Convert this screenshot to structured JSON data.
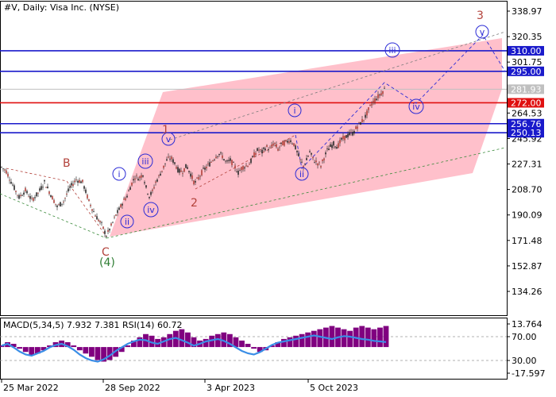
{
  "header": {
    "title": "#V, Daily:  Visa Inc. (NYSE)"
  },
  "colors": {
    "channel_fill": "#ffc0cb",
    "level_blue": "#1a1acb",
    "level_red": "#e01010",
    "current_price": "#c0c0c0",
    "macd_hist": "#800080",
    "rsi_line": "#3a8ee6",
    "wave_red": "#b2413a",
    "wave_green": "#2e7d32",
    "wave_blue": "#2b2bd6"
  },
  "chart_data": {
    "type": "candlestick",
    "symbol": "#V",
    "timeframe": "Daily",
    "instrument": "Visa Inc. (NYSE)",
    "ylim": [
      122,
      345
    ],
    "price_ticks": [
      "338.97",
      "320.35",
      "301.75",
      "264.53",
      "245.92",
      "227.31",
      "208.70",
      "190.09",
      "171.48",
      "152.87",
      "134.26"
    ],
    "time_ticks": [
      "25 Mar 2022",
      "28 Sep 2022",
      "3 Apr 2023",
      "5 Oct 2023"
    ],
    "levels": [
      {
        "value": 310.0,
        "label": "310.00",
        "kind": "resistance"
      },
      {
        "value": 295.0,
        "label": "295.00",
        "kind": "resistance"
      },
      {
        "value": 281.93,
        "label": "281.93",
        "kind": "current"
      },
      {
        "value": 272.0,
        "label": "272.00",
        "kind": "pivot"
      },
      {
        "value": 256.76,
        "label": "256.76",
        "kind": "support"
      },
      {
        "value": 250.13,
        "label": "250.13",
        "kind": "support"
      }
    ],
    "price_series": [
      [
        0,
        226
      ],
      [
        8,
        222
      ],
      [
        16,
        212
      ],
      [
        24,
        203
      ],
      [
        32,
        208
      ],
      [
        40,
        201
      ],
      [
        48,
        206
      ],
      [
        56,
        214
      ],
      [
        64,
        205
      ],
      [
        72,
        196
      ],
      [
        80,
        200
      ],
      [
        88,
        210
      ],
      [
        96,
        216
      ],
      [
        104,
        214
      ],
      [
        112,
        200
      ],
      [
        120,
        190
      ],
      [
        128,
        183
      ],
      [
        134,
        175
      ],
      [
        140,
        182
      ],
      [
        146,
        190
      ],
      [
        150,
        194
      ],
      [
        155,
        200
      ],
      [
        160,
        204
      ],
      [
        165,
        212
      ],
      [
        170,
        218
      ],
      [
        175,
        217
      ],
      [
        180,
        220
      ],
      [
        184,
        210
      ],
      [
        188,
        204
      ],
      [
        192,
        207
      ],
      [
        196,
        214
      ],
      [
        200,
        218
      ],
      [
        205,
        224
      ],
      [
        210,
        230
      ],
      [
        215,
        232
      ],
      [
        220,
        228
      ],
      [
        225,
        222
      ],
      [
        230,
        222
      ],
      [
        235,
        226
      ],
      [
        240,
        220
      ],
      [
        245,
        213
      ],
      [
        250,
        217
      ],
      [
        255,
        222
      ],
      [
        260,
        225
      ],
      [
        265,
        228
      ],
      [
        270,
        232
      ],
      [
        275,
        235
      ],
      [
        280,
        233
      ],
      [
        285,
        228
      ],
      [
        290,
        230
      ],
      [
        295,
        226
      ],
      [
        300,
        221
      ],
      [
        305,
        225
      ],
      [
        310,
        226
      ],
      [
        315,
        228
      ],
      [
        320,
        234
      ],
      [
        325,
        238
      ],
      [
        330,
        236
      ],
      [
        335,
        240
      ],
      [
        340,
        238
      ],
      [
        345,
        243
      ],
      [
        350,
        238
      ],
      [
        355,
        242
      ],
      [
        360,
        243
      ],
      [
        365,
        245
      ],
      [
        370,
        242
      ],
      [
        374,
        236
      ],
      [
        378,
        230
      ],
      [
        382,
        226
      ],
      [
        386,
        230
      ],
      [
        390,
        236
      ],
      [
        395,
        230
      ],
      [
        400,
        228
      ],
      [
        404,
        226
      ],
      [
        408,
        232
      ],
      [
        412,
        237
      ],
      [
        416,
        240
      ],
      [
        420,
        242
      ],
      [
        425,
        240
      ],
      [
        430,
        245
      ],
      [
        435,
        247
      ],
      [
        440,
        249
      ],
      [
        445,
        250
      ],
      [
        450,
        255
      ],
      [
        455,
        258
      ],
      [
        460,
        262
      ],
      [
        465,
        268
      ],
      [
        470,
        273
      ],
      [
        475,
        276
      ],
      [
        480,
        279
      ],
      [
        484,
        282
      ]
    ],
    "indicator": {
      "label": "MACD(5,34,5) 7.932 7.381 RSI(14) 60.72",
      "macd_ticks": [
        "13.764",
        "-17.597"
      ],
      "rsi_ticks": [
        "70.00",
        "30.00"
      ],
      "macd": [
        1,
        3,
        2,
        -1,
        -3,
        -5,
        -4,
        -2,
        1,
        3,
        4,
        3,
        1,
        -2,
        -4,
        -6,
        -8,
        -9,
        -8,
        -6,
        -3,
        1,
        4,
        6,
        8,
        7,
        5,
        6,
        8,
        10,
        11,
        9,
        6,
        4,
        5,
        7,
        8,
        9,
        8,
        6,
        4,
        2,
        -1,
        -3,
        -2,
        1,
        3,
        5,
        6,
        7,
        8,
        9,
        10,
        11,
        12,
        13,
        12,
        11,
        10,
        12,
        13,
        12,
        11,
        12,
        13
      ],
      "rsi": [
        55,
        58,
        52,
        45,
        40,
        38,
        42,
        46,
        52,
        56,
        58,
        54,
        48,
        40,
        34,
        30,
        28,
        32,
        38,
        46,
        52,
        58,
        62,
        65,
        64,
        60,
        58,
        62,
        66,
        68,
        64,
        60,
        55,
        58,
        62,
        64,
        66,
        63,
        58,
        52,
        46,
        42,
        40,
        44,
        50,
        56,
        60,
        62,
        64,
        66,
        68,
        70,
        72,
        70,
        68,
        66,
        69,
        71,
        70,
        68,
        66,
        65,
        63,
        62,
        61
      ]
    },
    "wave_labels": [
      {
        "text": "B",
        "color": "red",
        "style": "plain"
      },
      {
        "text": "C",
        "color": "red",
        "style": "plain"
      },
      {
        "text": "(4)",
        "color": "green",
        "style": "plain"
      },
      {
        "text": "1",
        "color": "red",
        "style": "plain"
      },
      {
        "text": "2",
        "color": "red",
        "style": "plain"
      },
      {
        "text": "3",
        "color": "red",
        "style": "plain"
      },
      {
        "text": "i",
        "color": "blue",
        "style": "circle"
      },
      {
        "text": "ii",
        "color": "blue",
        "style": "circle"
      },
      {
        "text": "iii",
        "color": "blue",
        "style": "circle"
      },
      {
        "text": "iv",
        "color": "blue",
        "style": "circle"
      },
      {
        "text": "v",
        "color": "blue",
        "style": "circle"
      },
      {
        "text": "i",
        "color": "blue",
        "style": "circle"
      },
      {
        "text": "ii",
        "color": "blue",
        "style": "circle"
      },
      {
        "text": "iii",
        "color": "blue",
        "style": "circle"
      },
      {
        "text": "iv",
        "color": "blue",
        "style": "circle"
      },
      {
        "text": "v",
        "color": "blue",
        "style": "circle"
      }
    ]
  }
}
